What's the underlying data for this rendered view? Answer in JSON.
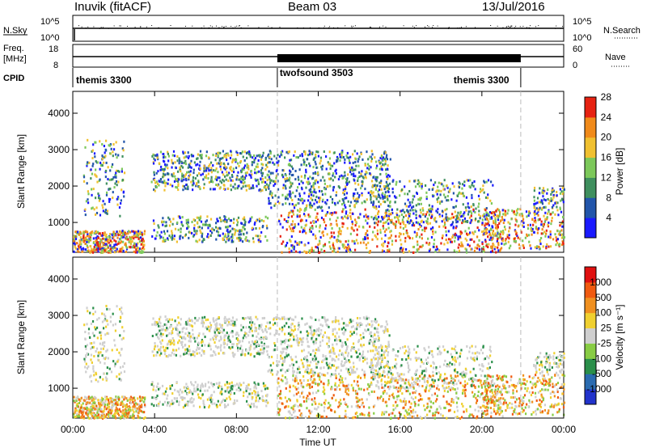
{
  "header": {
    "station": "Inuvik (fitACF)",
    "beam": "Beam 03",
    "date": "13/Jul/2016"
  },
  "top_panels": {
    "nsky_label": "N.Sky",
    "nsky_ticks": [
      "10^5",
      "10^0"
    ],
    "nsearch_ticks": [
      "10^5",
      "10^0"
    ],
    "nsearch_label": "N.Search",
    "freq_label": "Freq.",
    "freq_unit": "[MHz]",
    "freq_ticks": [
      "18",
      "8"
    ],
    "nave_ticks": [
      "60",
      "0"
    ],
    "nave_label": "Nave",
    "cpid_label": "CPID",
    "cpid_segments": [
      {
        "name": "themis 3300",
        "start": 0.0
      },
      {
        "name": "twofsound 3503",
        "start": 10.0
      },
      {
        "name": "themis 3300",
        "start": 21.9
      }
    ]
  },
  "chart_data": [
    {
      "type": "heatmap",
      "name": "power-panel",
      "ylabel": "Slant Range [km]",
      "yticks": [
        1000,
        2000,
        3000,
        4000
      ],
      "ylim": [
        180,
        4600
      ],
      "colorbar": {
        "label": "Power [dB]",
        "ticks": [
          "4",
          "8",
          "12",
          "16",
          "20",
          "24",
          "28"
        ],
        "colors": [
          "#1a1aff",
          "#2255aa",
          "#3f8f5e",
          "#7cc85a",
          "#f0c030",
          "#f08a1a",
          "#e62212"
        ]
      },
      "time_markers_h": [
        10.0,
        21.9
      ]
    },
    {
      "type": "heatmap",
      "name": "velocity-panel",
      "ylabel": "Slant Range [km]",
      "yticks": [
        1000,
        2000,
        3000,
        4000
      ],
      "ylim": [
        180,
        4600
      ],
      "colorbar": {
        "label": "Velocity [m s⁻¹]",
        "ticks": [
          "1000",
          "500",
          "100",
          "25",
          "-25",
          "-100",
          "-500",
          "-1000"
        ],
        "colors": [
          "#2233cc",
          "#2a6bb0",
          "#2a8f4a",
          "#88cc44",
          "#cfcfcf",
          "#f0d030",
          "#f09020",
          "#f05a10",
          "#e01010"
        ]
      },
      "time_markers_h": [
        10.0,
        21.9
      ]
    }
  ],
  "x_axis": {
    "ticks": [
      "00:00",
      "04:00",
      "08:00",
      "12:00",
      "16:00",
      "20:00",
      "00:00"
    ],
    "label": "Time UT"
  }
}
